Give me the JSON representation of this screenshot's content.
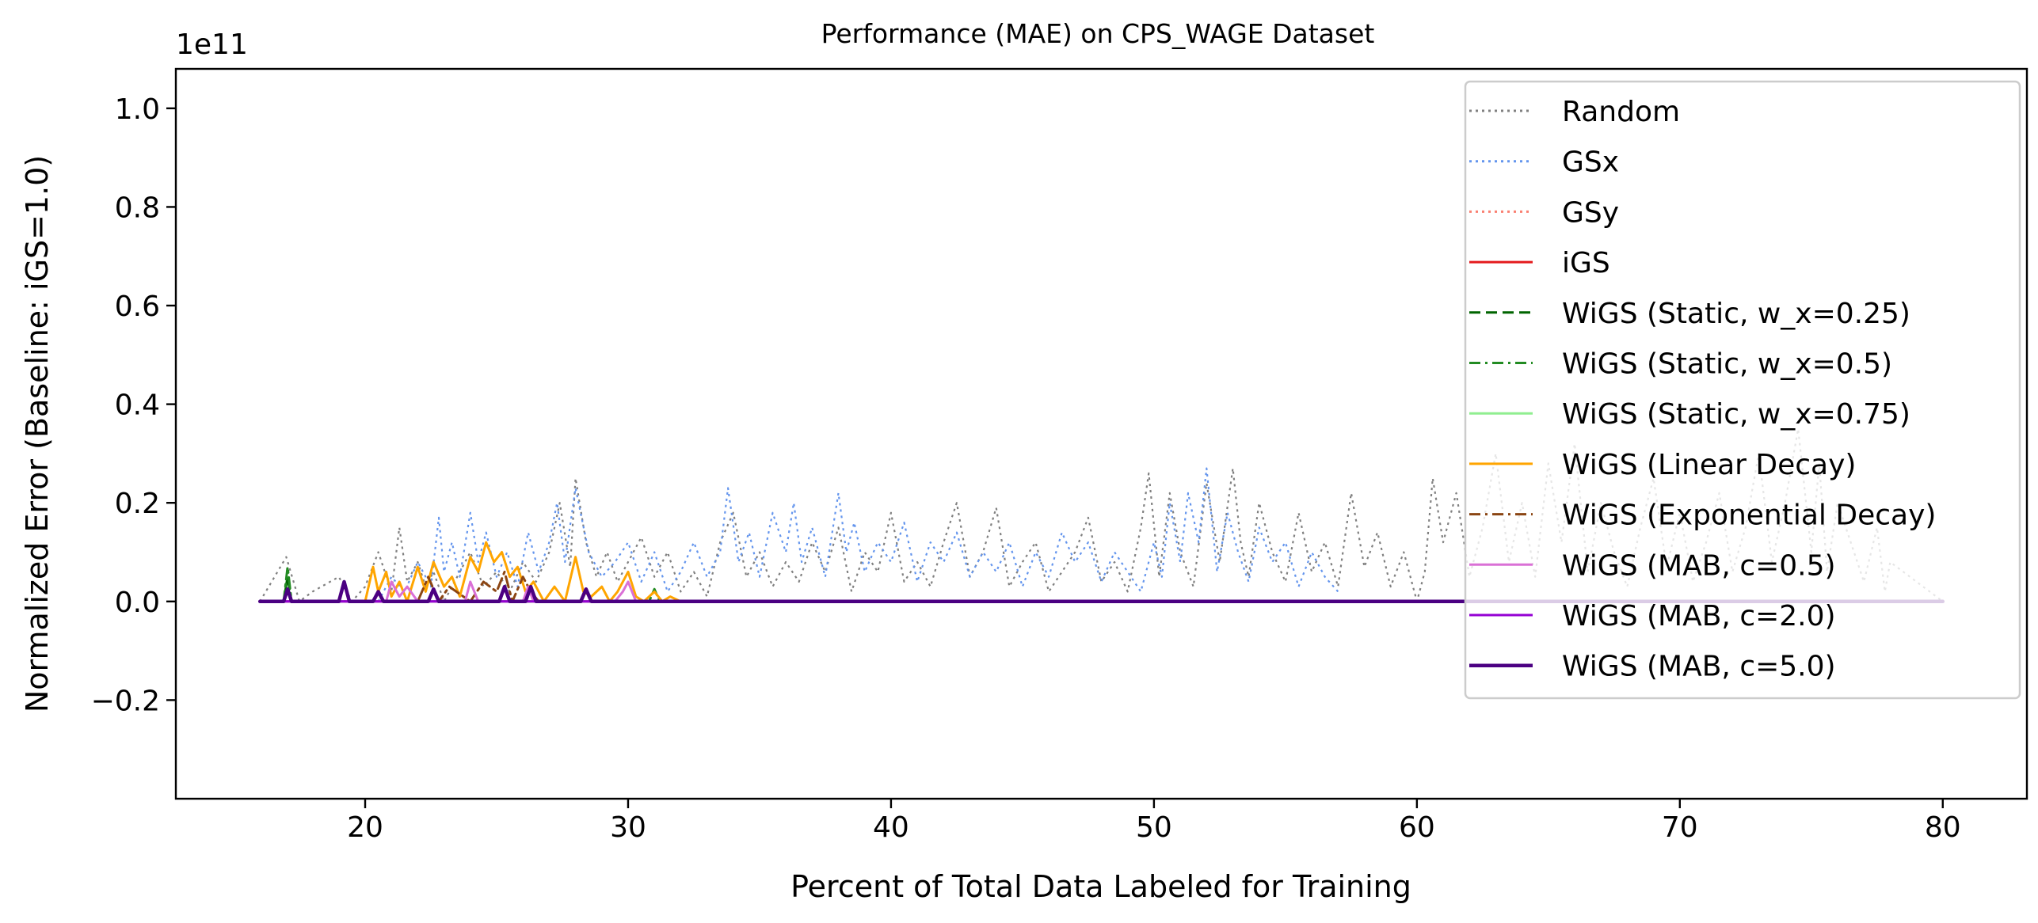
{
  "chart_data": {
    "type": "line",
    "title": "Performance (MAE) on CPS_WAGE Dataset",
    "xlabel": "Percent of Total Data Labeled for Training",
    "ylabel": "Normalized Error (Baseline: iGS=1.0)",
    "y_offset_label": "1e11",
    "xlim": [
      12.8,
      83.2
    ],
    "ylim": [
      -0.4,
      1.08
    ],
    "x_ticks": [
      20,
      30,
      40,
      50,
      60,
      70,
      80
    ],
    "x_tick_labels": [
      "20",
      "30",
      "40",
      "50",
      "60",
      "70",
      "80"
    ],
    "y_ticks": [
      -0.2,
      0.0,
      0.2,
      0.4,
      0.6,
      0.8,
      1.0
    ],
    "y_tick_labels": [
      "−0.2",
      "0.0",
      "0.2",
      "0.4",
      "0.6",
      "0.8",
      "1.0"
    ],
    "legend_position": "upper right",
    "series": [
      {
        "name": "Random",
        "color": "#808080",
        "style": "dotted",
        "width": 2.2,
        "x": [
          16,
          17,
          17.5,
          18,
          19,
          19.5,
          20,
          20.5,
          21,
          21.3,
          21.6,
          22,
          22.3,
          22.6,
          23,
          23.5,
          24,
          24.5,
          25,
          25.5,
          26,
          26.5,
          27,
          27.4,
          27.8,
          28,
          28.4,
          28.8,
          29.2,
          29.6,
          30,
          30.5,
          31,
          31.5,
          32,
          32.5,
          33,
          33.5,
          34,
          34.5,
          35,
          35.5,
          36,
          36.5,
          37,
          37.5,
          38,
          38.5,
          39,
          39.5,
          40,
          40.5,
          41,
          41.5,
          42,
          42.5,
          43,
          43.5,
          44,
          44.5,
          45,
          45.5,
          46,
          46.5,
          47,
          47.5,
          48,
          48.5,
          49,
          49.5,
          49.8,
          50.2,
          50.6,
          51,
          51.5,
          52,
          52.5,
          53,
          53.3,
          53.6,
          54,
          54.5,
          55,
          55.5,
          56,
          56.5,
          57,
          57.5,
          58,
          58.5,
          59,
          59.5,
          60,
          60.3,
          60.6,
          61,
          61.5,
          62,
          62.5,
          63,
          63.5,
          64,
          64.5,
          65,
          65.5,
          66,
          66.5,
          67,
          67.5,
          68,
          68.5,
          69,
          69.5,
          70,
          70.5,
          71,
          71.5,
          72,
          72.5,
          73,
          73.5,
          74,
          74.5,
          75,
          75.3,
          75.6,
          76,
          76.5,
          77,
          77.5,
          77.8,
          78,
          80
        ],
        "y": [
          0,
          0.09,
          0,
          0.02,
          0.05,
          0,
          0.03,
          0.1,
          0.02,
          0.15,
          0.04,
          0.08,
          0.03,
          0.06,
          0,
          0.05,
          0.1,
          0.03,
          0.06,
          0.02,
          0.08,
          0.04,
          0.1,
          0.2,
          0.07,
          0.25,
          0.12,
          0.05,
          0.1,
          0.04,
          0.08,
          0.13,
          0.05,
          0.1,
          0.02,
          0.06,
          0.01,
          0.12,
          0.18,
          0.05,
          0.1,
          0.03,
          0.08,
          0.04,
          0.12,
          0.06,
          0.15,
          0.02,
          0.1,
          0.06,
          0.18,
          0.04,
          0.08,
          0.03,
          0.12,
          0.2,
          0.05,
          0.1,
          0.19,
          0.03,
          0.08,
          0.12,
          0.02,
          0.06,
          0.1,
          0.17,
          0.04,
          0.08,
          0.02,
          0.15,
          0.26,
          0.05,
          0.22,
          0.1,
          0.03,
          0.24,
          0.08,
          0.27,
          0.12,
          0.05,
          0.2,
          0.1,
          0.04,
          0.18,
          0.06,
          0.12,
          0.03,
          0.22,
          0.07,
          0.14,
          0.03,
          0.1,
          0,
          0.06,
          0.25,
          0.12,
          0.22,
          0.05,
          0.15,
          0.3,
          0.08,
          0.2,
          0.05,
          0.28,
          0.12,
          0.32,
          0.06,
          0.2,
          0.1,
          0.03,
          0.15,
          0.25,
          0.07,
          0.18,
          0.04,
          0.12,
          0.22,
          0.06,
          0.15,
          0.3,
          0.08,
          0.2,
          0.35,
          0.1,
          0.28,
          0.06,
          0.2,
          0.12,
          0.04,
          0.15,
          0.02,
          0.08,
          0
        ]
      },
      {
        "name": "GSx",
        "color": "#6495ed",
        "style": "dotted",
        "width": 2.2,
        "x": [
          20.5,
          21,
          21.5,
          22,
          22.5,
          22.8,
          23,
          23.3,
          23.6,
          24,
          24.3,
          24.6,
          25,
          25.4,
          25.8,
          26.2,
          26.6,
          27,
          27.3,
          27.6,
          28,
          28.5,
          29,
          29.5,
          30,
          30.5,
          31,
          31.5,
          32,
          32.5,
          33,
          33.5,
          33.8,
          34.2,
          34.6,
          35,
          35.5,
          36,
          36.3,
          36.6,
          37,
          37.5,
          38,
          38.3,
          38.6,
          39,
          39.5,
          40,
          40.5,
          41,
          41.5,
          42,
          42.5,
          43,
          43.5,
          44,
          44.5,
          45,
          45.5,
          46,
          46.5,
          47,
          47.5,
          48,
          48.5,
          49,
          49.5,
          50,
          50.3,
          50.6,
          51,
          51.3,
          51.7,
          52,
          52.4,
          52.8,
          53.2,
          53.6,
          54,
          54.5,
          55,
          55.5,
          56,
          56.5,
          57
        ],
        "y": [
          0,
          0.05,
          0.02,
          0.08,
          0.03,
          0.17,
          0.06,
          0.12,
          0.05,
          0.18,
          0.08,
          0.14,
          0.05,
          0.1,
          0.03,
          0.14,
          0.06,
          0.12,
          0.2,
          0.08,
          0.23,
          0.1,
          0.05,
          0.08,
          0.12,
          0.04,
          0.1,
          0.02,
          0.06,
          0.12,
          0.05,
          0.1,
          0.23,
          0.08,
          0.14,
          0.05,
          0.18,
          0.1,
          0.2,
          0.08,
          0.15,
          0.05,
          0.22,
          0.1,
          0.16,
          0.06,
          0.12,
          0.08,
          0.16,
          0.04,
          0.12,
          0.08,
          0.14,
          0.05,
          0.1,
          0.06,
          0.12,
          0.03,
          0.1,
          0.05,
          0.14,
          0.08,
          0.12,
          0.04,
          0.1,
          0.06,
          0.02,
          0.12,
          0.05,
          0.2,
          0.08,
          0.22,
          0.12,
          0.27,
          0.06,
          0.18,
          0.1,
          0.04,
          0.15,
          0.08,
          0.12,
          0.03,
          0.1,
          0.05,
          0.02
        ]
      },
      {
        "name": "GSy",
        "color": "#fa8072",
        "style": "dotted",
        "width": 2.2,
        "x": [
          16,
          80
        ],
        "y": [
          0,
          0
        ]
      },
      {
        "name": "iGS",
        "color": "#e41a1c",
        "style": "solid",
        "width": 3,
        "x": [
          16,
          80
        ],
        "y": [
          0,
          0
        ]
      },
      {
        "name": "WiGS (Static, w_x=0.25)",
        "color": "#006400",
        "style": "dashed",
        "width": 3,
        "x": [
          16,
          16.9,
          17.05,
          17.2,
          20,
          80
        ],
        "y": [
          0,
          0,
          0.05,
          0,
          0,
          0
        ]
      },
      {
        "name": "WiGS (Static, w_x=0.5)",
        "color": "#228b22",
        "style": "dashdot",
        "width": 3,
        "x": [
          16,
          16.9,
          17.05,
          17.2,
          30.8,
          31,
          31.2,
          80
        ],
        "y": [
          0,
          0,
          0.07,
          0,
          0,
          0.025,
          0,
          0
        ]
      },
      {
        "name": "WiGS (Static, w_x=0.75)",
        "color": "#90ee90",
        "style": "solid",
        "width": 3,
        "x": [
          16,
          80
        ],
        "y": [
          0,
          0
        ]
      },
      {
        "name": "WiGS (Linear Decay)",
        "color": "#ffa500",
        "style": "solid",
        "width": 3,
        "x": [
          20,
          20.3,
          20.5,
          20.8,
          21,
          21.3,
          21.6,
          22,
          22.3,
          22.6,
          23,
          23.3,
          23.6,
          24,
          24.3,
          24.6,
          24.9,
          25.2,
          25.5,
          25.8,
          26.1,
          26.4,
          26.8,
          27.2,
          27.6,
          28,
          28.3,
          28.6,
          29,
          29.3,
          29.6,
          30,
          30.3,
          30.6,
          31,
          31.3,
          31.6,
          32,
          32.3
        ],
        "y": [
          0,
          0.07,
          0.02,
          0.06,
          0.01,
          0.04,
          0,
          0.07,
          0.02,
          0.08,
          0.03,
          0.05,
          0.01,
          0.09,
          0.06,
          0.12,
          0.08,
          0.1,
          0.05,
          0.07,
          0.02,
          0.04,
          0,
          0.03,
          0,
          0.09,
          0.02,
          0.01,
          0.03,
          0,
          0.02,
          0.06,
          0.01,
          0,
          0.02,
          0,
          0.01,
          0,
          0
        ]
      },
      {
        "name": "WiGS (Exponential Decay)",
        "color": "#8b4513",
        "style": "dashdot",
        "width": 3,
        "x": [
          16,
          22,
          22.4,
          22.8,
          23.2,
          24,
          24.5,
          25,
          25.3,
          25.6,
          26,
          26.3,
          26.6,
          27,
          80
        ],
        "y": [
          0,
          0,
          0.05,
          0,
          0.03,
          0,
          0.04,
          0.02,
          0.06,
          0,
          0.05,
          0.02,
          0,
          0,
          0
        ]
      },
      {
        "name": "WiGS (MAB, c=0.5)",
        "color": "#da70d6",
        "style": "solid",
        "width": 3,
        "x": [
          16,
          20.8,
          21,
          21.3,
          21.6,
          22,
          23.8,
          24,
          24.3,
          26,
          26.2,
          26.4,
          29.5,
          29.8,
          30,
          30.3,
          80
        ],
        "y": [
          0,
          0,
          0.04,
          0.01,
          0.03,
          0,
          0,
          0.04,
          0,
          0,
          0.03,
          0,
          0,
          0.02,
          0.04,
          0,
          0
        ]
      },
      {
        "name": "WiGS (MAB, c=2.0)",
        "color": "#9400d3",
        "style": "solid",
        "width": 3,
        "x": [
          16,
          80
        ],
        "y": [
          0,
          0
        ]
      },
      {
        "name": "WiGS (MAB, c=5.0)",
        "color": "#4b0082",
        "style": "solid",
        "width": 4.5,
        "x": [
          16,
          16.9,
          17.05,
          17.2,
          19,
          19.2,
          19.4,
          20.3,
          20.5,
          20.7,
          22.4,
          22.6,
          22.8,
          25.1,
          25.3,
          25.5,
          26.1,
          26.3,
          26.5,
          28.2,
          28.4,
          28.6,
          80
        ],
        "y": [
          0,
          0,
          0.025,
          0,
          0,
          0.04,
          0,
          0,
          0.02,
          0,
          0,
          0.025,
          0,
          0,
          0.03,
          0,
          0,
          0.03,
          0,
          0,
          0.025,
          0,
          0
        ]
      }
    ]
  }
}
